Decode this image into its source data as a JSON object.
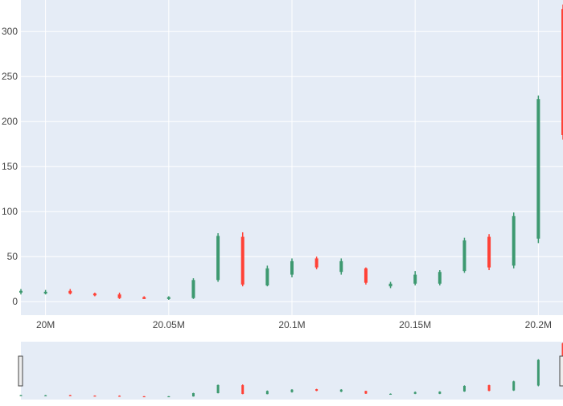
{
  "chart_data": {
    "type": "candlestick",
    "title": "",
    "xlabel": "",
    "ylabel": "",
    "x_range": [
      19990000,
      20210000
    ],
    "y_range": [
      -15,
      335
    ],
    "x_tick_values": [
      20000000,
      20050000,
      20100000,
      20150000,
      20200000
    ],
    "x_tick_labels": [
      "20M",
      "20.05M",
      "20.1M",
      "20.15M",
      "20.2M"
    ],
    "y_tick_values": [
      0,
      50,
      100,
      150,
      200,
      250,
      300
    ],
    "y_tick_labels": [
      "0",
      "50",
      "100",
      "150",
      "200",
      "250",
      "300"
    ],
    "grid": true,
    "legend": "none",
    "rangeslider": true,
    "colors": {
      "increasing": "#3D9970",
      "decreasing": "#FF4136",
      "plot_background": "#E5ECF6",
      "gridline": "#FFFFFF",
      "axis_text": "#444444"
    },
    "candles": [
      {
        "x": 19990000,
        "open": 10,
        "high": 14,
        "low": 8,
        "close": 12
      },
      {
        "x": 20000000,
        "open": 9,
        "high": 13,
        "low": 8,
        "close": 11
      },
      {
        "x": 20010000,
        "open": 12,
        "high": 14,
        "low": 8,
        "close": 9
      },
      {
        "x": 20020000,
        "open": 9,
        "high": 10,
        "low": 6,
        "close": 7
      },
      {
        "x": 20030000,
        "open": 8,
        "high": 10,
        "low": 3,
        "close": 4
      },
      {
        "x": 20040000,
        "open": 5,
        "high": 6,
        "low": 3,
        "close": 3
      },
      {
        "x": 20050000,
        "open": 3,
        "high": 6,
        "low": 2,
        "close": 5
      },
      {
        "x": 20060000,
        "open": 4,
        "high": 26,
        "low": 3,
        "close": 24
      },
      {
        "x": 20070000,
        "open": 24,
        "high": 76,
        "low": 22,
        "close": 73
      },
      {
        "x": 20080000,
        "open": 72,
        "high": 77,
        "low": 17,
        "close": 19
      },
      {
        "x": 20090000,
        "open": 18,
        "high": 40,
        "low": 17,
        "close": 37
      },
      {
        "x": 20100000,
        "open": 30,
        "high": 48,
        "low": 27,
        "close": 45
      },
      {
        "x": 20110000,
        "open": 48,
        "high": 50,
        "low": 36,
        "close": 38
      },
      {
        "x": 20120000,
        "open": 33,
        "high": 48,
        "low": 30,
        "close": 45
      },
      {
        "x": 20130000,
        "open": 37,
        "high": 38,
        "low": 19,
        "close": 21
      },
      {
        "x": 20140000,
        "open": 17,
        "high": 22,
        "low": 15,
        "close": 20
      },
      {
        "x": 20150000,
        "open": 20,
        "high": 34,
        "low": 18,
        "close": 30
      },
      {
        "x": 20160000,
        "open": 20,
        "high": 35,
        "low": 18,
        "close": 33
      },
      {
        "x": 20170000,
        "open": 34,
        "high": 71,
        "low": 32,
        "close": 68
      },
      {
        "x": 20180000,
        "open": 72,
        "high": 75,
        "low": 35,
        "close": 38
      },
      {
        "x": 20190000,
        "open": 40,
        "high": 99,
        "low": 37,
        "close": 95
      },
      {
        "x": 20200000,
        "open": 70,
        "high": 229,
        "low": 65,
        "close": 225
      },
      {
        "x": 20210000,
        "open": 325,
        "high": 330,
        "low": 180,
        "close": 185
      }
    ]
  }
}
